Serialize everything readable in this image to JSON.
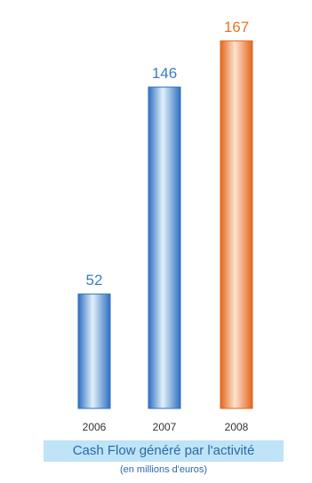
{
  "chart_data": {
    "type": "bar",
    "title": "Cash Flow généré par l'activité",
    "subtitle": "(en millions d'euros)",
    "categories": [
      "2006",
      "2007",
      "2008"
    ],
    "values": [
      52,
      146,
      167
    ],
    "ylim": [
      0,
      167
    ],
    "grid": false,
    "legend": "none",
    "colors": {
      "blue_dark": "#2f6fc0",
      "blue_light": "#e2f1fb",
      "orange_dark": "#e2661c",
      "orange_light": "#fde3cf",
      "blue_label": "#3a7bc8",
      "orange_label": "#e8732a"
    },
    "bar_styles": [
      "blue",
      "blue",
      "orange"
    ]
  }
}
